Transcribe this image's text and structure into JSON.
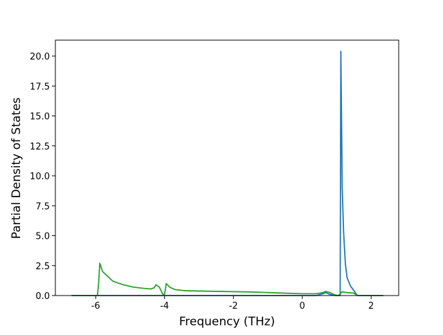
{
  "chart_data": {
    "type": "line",
    "x_label": "Frequency (THz)",
    "y_label": "Partial Density of States",
    "xlim": [
      -7.17,
      2.8
    ],
    "ylim": [
      0,
      21.33
    ],
    "xticks": [
      -6,
      -4,
      -2,
      0,
      2
    ],
    "yticks": [
      {
        "value": 0,
        "label": "0.0"
      },
      2.5,
      {
        "value": 5,
        "label": "5.0"
      },
      7.5,
      {
        "value": 10,
        "label": "10.0"
      },
      12.5,
      {
        "value": 15,
        "label": "15.0"
      },
      17.5,
      {
        "value": 20,
        "label": "20.0"
      }
    ],
    "series": [
      {
        "color": "#1f77b4",
        "x": [
          -6.7,
          0.4,
          0.6,
          0.68,
          0.8,
          0.95,
          1.08,
          1.1,
          1.12,
          1.16,
          1.2,
          1.25,
          1.3,
          1.4,
          1.5,
          1.6,
          2.35
        ],
        "values": [
          0,
          0,
          0.15,
          0.25,
          0.1,
          0,
          0,
          0,
          20.4,
          9,
          5.3,
          2.7,
          1.5,
          0.8,
          0.4,
          0,
          0
        ]
      },
      {
        "color": "#2ca02c",
        "x": [
          -6.7,
          -5.95,
          -5.92,
          -5.88,
          -5.8,
          -5.65,
          -5.5,
          -5.2,
          -4.9,
          -4.6,
          -4.4,
          -4.3,
          -4.25,
          -4.15,
          -4.05,
          -4.0,
          -3.95,
          -3.85,
          -3.7,
          -3.4,
          -2.5,
          -1.5,
          -1.0,
          -0.5,
          0,
          0.4,
          0.6,
          0.68,
          0.8,
          0.95,
          1.05,
          1.15,
          1.3,
          1.5,
          1.6,
          2.35
        ],
        "values": [
          0,
          0,
          0.8,
          2.7,
          2.0,
          1.6,
          1.2,
          0.9,
          0.7,
          0.6,
          0.55,
          0.65,
          0.9,
          0.7,
          0.1,
          0.1,
          1.0,
          0.7,
          0.5,
          0.4,
          0.35,
          0.3,
          0.25,
          0.2,
          0.15,
          0.15,
          0.25,
          0.35,
          0.25,
          0.05,
          0,
          0.3,
          0.25,
          0.2,
          0,
          0
        ]
      }
    ]
  }
}
